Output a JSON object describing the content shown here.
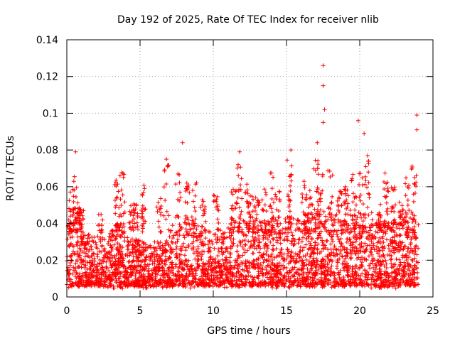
{
  "chart_data": {
    "type": "scatter",
    "title": "Day 192 of 2025, Rate Of TEC Index for receiver nlib",
    "xlabel": "GPS time / hours",
    "ylabel": "ROTI / TECUs",
    "xlim": [
      0,
      25
    ],
    "ylim": [
      0,
      0.14
    ],
    "xticks": [
      0,
      5,
      10,
      15,
      20,
      25
    ],
    "xtick_labels": [
      "0",
      "5",
      "10",
      "15",
      "20",
      "25"
    ],
    "yticks": [
      0,
      0.02,
      0.04,
      0.06,
      0.08,
      0.1,
      0.12,
      0.14
    ],
    "ytick_labels": [
      "0",
      "0.02",
      "0.04",
      "0.06",
      "0.08",
      "0.1",
      "0.12",
      "0.14"
    ],
    "grid": true,
    "marker": "+",
    "series": [
      {
        "name": "ROTI",
        "color": "#ff0000",
        "x_range": [
          0,
          24
        ],
        "typical_range": [
          0.005,
          0.045
        ],
        "notable_points": [
          {
            "x": 0.6,
            "y": 0.079
          },
          {
            "x": 6.8,
            "y": 0.075
          },
          {
            "x": 7.9,
            "y": 0.084
          },
          {
            "x": 11.8,
            "y": 0.079
          },
          {
            "x": 15.3,
            "y": 0.08
          },
          {
            "x": 17.1,
            "y": 0.084
          },
          {
            "x": 17.5,
            "y": 0.126
          },
          {
            "x": 17.5,
            "y": 0.115
          },
          {
            "x": 17.6,
            "y": 0.102
          },
          {
            "x": 17.5,
            "y": 0.095
          },
          {
            "x": 19.9,
            "y": 0.096
          },
          {
            "x": 20.3,
            "y": 0.089
          },
          {
            "x": 23.9,
            "y": 0.099
          },
          {
            "x": 23.9,
            "y": 0.091
          }
        ]
      }
    ]
  }
}
